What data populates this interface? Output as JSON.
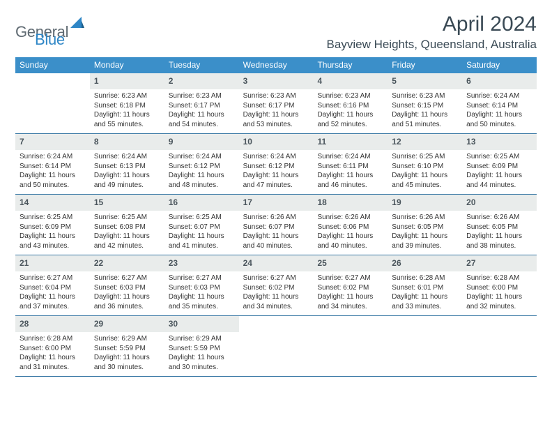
{
  "logo": {
    "text1": "General",
    "text2": "Blue"
  },
  "title": "April 2024",
  "location": "Bayview Heights, Queensland, Australia",
  "colors": {
    "header_bg": "#3b8fc9",
    "daynum_bg": "#e9eceb",
    "week_border": "#3b7aa6",
    "logo_gray": "#5f6a72",
    "logo_blue": "#2e86c6"
  },
  "weekdays": [
    "Sunday",
    "Monday",
    "Tuesday",
    "Wednesday",
    "Thursday",
    "Friday",
    "Saturday"
  ],
  "weeks": [
    [
      {
        "day": "",
        "sunrise": "",
        "sunset": "",
        "daylight": ""
      },
      {
        "day": "1",
        "sunrise": "Sunrise: 6:23 AM",
        "sunset": "Sunset: 6:18 PM",
        "daylight": "Daylight: 11 hours and 55 minutes."
      },
      {
        "day": "2",
        "sunrise": "Sunrise: 6:23 AM",
        "sunset": "Sunset: 6:17 PM",
        "daylight": "Daylight: 11 hours and 54 minutes."
      },
      {
        "day": "3",
        "sunrise": "Sunrise: 6:23 AM",
        "sunset": "Sunset: 6:17 PM",
        "daylight": "Daylight: 11 hours and 53 minutes."
      },
      {
        "day": "4",
        "sunrise": "Sunrise: 6:23 AM",
        "sunset": "Sunset: 6:16 PM",
        "daylight": "Daylight: 11 hours and 52 minutes."
      },
      {
        "day": "5",
        "sunrise": "Sunrise: 6:23 AM",
        "sunset": "Sunset: 6:15 PM",
        "daylight": "Daylight: 11 hours and 51 minutes."
      },
      {
        "day": "6",
        "sunrise": "Sunrise: 6:24 AM",
        "sunset": "Sunset: 6:14 PM",
        "daylight": "Daylight: 11 hours and 50 minutes."
      }
    ],
    [
      {
        "day": "7",
        "sunrise": "Sunrise: 6:24 AM",
        "sunset": "Sunset: 6:14 PM",
        "daylight": "Daylight: 11 hours and 50 minutes."
      },
      {
        "day": "8",
        "sunrise": "Sunrise: 6:24 AM",
        "sunset": "Sunset: 6:13 PM",
        "daylight": "Daylight: 11 hours and 49 minutes."
      },
      {
        "day": "9",
        "sunrise": "Sunrise: 6:24 AM",
        "sunset": "Sunset: 6:12 PM",
        "daylight": "Daylight: 11 hours and 48 minutes."
      },
      {
        "day": "10",
        "sunrise": "Sunrise: 6:24 AM",
        "sunset": "Sunset: 6:12 PM",
        "daylight": "Daylight: 11 hours and 47 minutes."
      },
      {
        "day": "11",
        "sunrise": "Sunrise: 6:24 AM",
        "sunset": "Sunset: 6:11 PM",
        "daylight": "Daylight: 11 hours and 46 minutes."
      },
      {
        "day": "12",
        "sunrise": "Sunrise: 6:25 AM",
        "sunset": "Sunset: 6:10 PM",
        "daylight": "Daylight: 11 hours and 45 minutes."
      },
      {
        "day": "13",
        "sunrise": "Sunrise: 6:25 AM",
        "sunset": "Sunset: 6:09 PM",
        "daylight": "Daylight: 11 hours and 44 minutes."
      }
    ],
    [
      {
        "day": "14",
        "sunrise": "Sunrise: 6:25 AM",
        "sunset": "Sunset: 6:09 PM",
        "daylight": "Daylight: 11 hours and 43 minutes."
      },
      {
        "day": "15",
        "sunrise": "Sunrise: 6:25 AM",
        "sunset": "Sunset: 6:08 PM",
        "daylight": "Daylight: 11 hours and 42 minutes."
      },
      {
        "day": "16",
        "sunrise": "Sunrise: 6:25 AM",
        "sunset": "Sunset: 6:07 PM",
        "daylight": "Daylight: 11 hours and 41 minutes."
      },
      {
        "day": "17",
        "sunrise": "Sunrise: 6:26 AM",
        "sunset": "Sunset: 6:07 PM",
        "daylight": "Daylight: 11 hours and 40 minutes."
      },
      {
        "day": "18",
        "sunrise": "Sunrise: 6:26 AM",
        "sunset": "Sunset: 6:06 PM",
        "daylight": "Daylight: 11 hours and 40 minutes."
      },
      {
        "day": "19",
        "sunrise": "Sunrise: 6:26 AM",
        "sunset": "Sunset: 6:05 PM",
        "daylight": "Daylight: 11 hours and 39 minutes."
      },
      {
        "day": "20",
        "sunrise": "Sunrise: 6:26 AM",
        "sunset": "Sunset: 6:05 PM",
        "daylight": "Daylight: 11 hours and 38 minutes."
      }
    ],
    [
      {
        "day": "21",
        "sunrise": "Sunrise: 6:27 AM",
        "sunset": "Sunset: 6:04 PM",
        "daylight": "Daylight: 11 hours and 37 minutes."
      },
      {
        "day": "22",
        "sunrise": "Sunrise: 6:27 AM",
        "sunset": "Sunset: 6:03 PM",
        "daylight": "Daylight: 11 hours and 36 minutes."
      },
      {
        "day": "23",
        "sunrise": "Sunrise: 6:27 AM",
        "sunset": "Sunset: 6:03 PM",
        "daylight": "Daylight: 11 hours and 35 minutes."
      },
      {
        "day": "24",
        "sunrise": "Sunrise: 6:27 AM",
        "sunset": "Sunset: 6:02 PM",
        "daylight": "Daylight: 11 hours and 34 minutes."
      },
      {
        "day": "25",
        "sunrise": "Sunrise: 6:27 AM",
        "sunset": "Sunset: 6:02 PM",
        "daylight": "Daylight: 11 hours and 34 minutes."
      },
      {
        "day": "26",
        "sunrise": "Sunrise: 6:28 AM",
        "sunset": "Sunset: 6:01 PM",
        "daylight": "Daylight: 11 hours and 33 minutes."
      },
      {
        "day": "27",
        "sunrise": "Sunrise: 6:28 AM",
        "sunset": "Sunset: 6:00 PM",
        "daylight": "Daylight: 11 hours and 32 minutes."
      }
    ],
    [
      {
        "day": "28",
        "sunrise": "Sunrise: 6:28 AM",
        "sunset": "Sunset: 6:00 PM",
        "daylight": "Daylight: 11 hours and 31 minutes."
      },
      {
        "day": "29",
        "sunrise": "Sunrise: 6:29 AM",
        "sunset": "Sunset: 5:59 PM",
        "daylight": "Daylight: 11 hours and 30 minutes."
      },
      {
        "day": "30",
        "sunrise": "Sunrise: 6:29 AM",
        "sunset": "Sunset: 5:59 PM",
        "daylight": "Daylight: 11 hours and 30 minutes."
      },
      {
        "day": "",
        "sunrise": "",
        "sunset": "",
        "daylight": ""
      },
      {
        "day": "",
        "sunrise": "",
        "sunset": "",
        "daylight": ""
      },
      {
        "day": "",
        "sunrise": "",
        "sunset": "",
        "daylight": ""
      },
      {
        "day": "",
        "sunrise": "",
        "sunset": "",
        "daylight": ""
      }
    ]
  ]
}
